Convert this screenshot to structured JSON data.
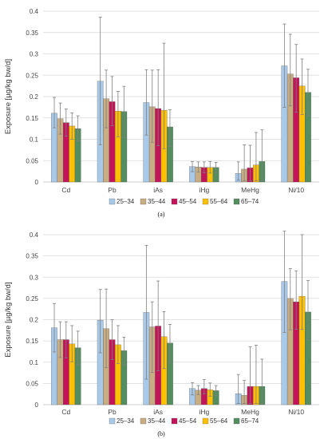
{
  "chart_data": [
    {
      "type": "bar",
      "panel_label": "(a)",
      "ylabel": "Exposure [µg/kg bw/d]",
      "ylim": [
        0,
        0.4
      ],
      "yticks": [
        "0",
        "0.05",
        "0.1",
        "0.15",
        "0.2",
        "0.25",
        "0.3",
        "0.35",
        "0.4"
      ],
      "grid": true,
      "legend_position": "bottom",
      "categories": [
        "Cd",
        "Pb",
        "iAs",
        "iHg",
        "MeHg",
        "Ni/10"
      ],
      "series": [
        {
          "name": "25–34",
          "color": "#a9c9e8",
          "values": [
            0.161,
            0.236,
            0.186,
            0.036,
            0.02,
            0.272
          ],
          "err_low": [
            0.127,
            0.087,
            0.11,
            0.024,
            0.004,
            0.175
          ],
          "err_high": [
            0.198,
            0.386,
            0.263,
            0.048,
            0.047,
            0.37
          ]
        },
        {
          "name": "35–44",
          "color": "#c8ac82",
          "values": [
            0.148,
            0.195,
            0.176,
            0.035,
            0.03,
            0.253
          ],
          "err_low": [
            0.112,
            0.127,
            0.093,
            0.023,
            0.003,
            0.178
          ],
          "err_high": [
            0.185,
            0.262,
            0.262,
            0.047,
            0.087,
            0.346
          ]
        },
        {
          "name": "45–54",
          "color": "#c3145a",
          "values": [
            0.139,
            0.188,
            0.172,
            0.034,
            0.033,
            0.244
          ],
          "err_low": [
            0.107,
            0.132,
            0.085,
            0.022,
            0.003,
            0.163
          ],
          "err_high": [
            0.171,
            0.247,
            0.263,
            0.047,
            0.086,
            0.322
          ]
        },
        {
          "name": "55–64",
          "color": "#ffc000",
          "values": [
            0.131,
            0.166,
            0.168,
            0.034,
            0.04,
            0.225
          ],
          "err_low": [
            0.1,
            0.106,
            0.078,
            0.021,
            0.003,
            0.158
          ],
          "err_high": [
            0.162,
            0.212,
            0.325,
            0.048,
            0.116,
            0.288
          ]
        },
        {
          "name": "65–74",
          "color": "#548d60",
          "values": [
            0.125,
            0.165,
            0.129,
            0.034,
            0.048,
            0.21
          ],
          "err_low": [
            0.096,
            0.104,
            0.083,
            0.022,
            0.003,
            0.155
          ],
          "err_high": [
            0.155,
            0.224,
            0.169,
            0.046,
            0.122,
            0.264
          ]
        }
      ]
    },
    {
      "type": "bar",
      "panel_label": "(b)",
      "ylabel": "Exposure [µg/kg bw/d]",
      "ylim": [
        0,
        0.4
      ],
      "yticks": [
        "0",
        "0.05",
        "0.1",
        "0.15",
        "0.2",
        "0.25",
        "0.3",
        "0.35",
        "0.4"
      ],
      "grid": true,
      "legend_position": "bottom",
      "categories": [
        "Cd",
        "Pb",
        "iAs",
        "iHg",
        "MeHg",
        "Ni/10"
      ],
      "series": [
        {
          "name": "25–34",
          "color": "#a9c9e8",
          "values": [
            0.181,
            0.199,
            0.217,
            0.038,
            0.026,
            0.29
          ],
          "err_low": [
            0.124,
            0.122,
            0.06,
            0.023,
            0.003,
            0.17
          ],
          "err_high": [
            0.238,
            0.271,
            0.375,
            0.052,
            0.071,
            0.408
          ]
        },
        {
          "name": "35–44",
          "color": "#c8ac82",
          "values": [
            0.153,
            0.179,
            0.183,
            0.034,
            0.022,
            0.25
          ],
          "err_low": [
            0.111,
            0.087,
            0.076,
            0.024,
            0.003,
            0.176
          ],
          "err_high": [
            0.195,
            0.272,
            0.242,
            0.045,
            0.057,
            0.32
          ]
        },
        {
          "name": "45–54",
          "color": "#c3145a",
          "values": [
            0.153,
            0.153,
            0.185,
            0.038,
            0.043,
            0.242
          ],
          "err_low": [
            0.11,
            0.106,
            0.08,
            0.025,
            0.003,
            0.177
          ],
          "err_high": [
            0.195,
            0.2,
            0.291,
            0.059,
            0.136,
            0.315
          ]
        },
        {
          "name": "55–64",
          "color": "#ffc000",
          "values": [
            0.143,
            0.141,
            0.16,
            0.035,
            0.043,
            0.255
          ],
          "err_low": [
            0.101,
            0.097,
            0.085,
            0.02,
            0.003,
            0.177
          ],
          "err_high": [
            0.186,
            0.186,
            0.219,
            0.051,
            0.14,
            0.4
          ]
        },
        {
          "name": "65–74",
          "color": "#548d60",
          "values": [
            0.134,
            0.127,
            0.145,
            0.033,
            0.043,
            0.218
          ],
          "err_low": [
            0.094,
            0.094,
            0.098,
            0.021,
            0.003,
            0.153
          ],
          "err_high": [
            0.173,
            0.159,
            0.189,
            0.045,
            0.107,
            0.292
          ]
        }
      ]
    }
  ]
}
